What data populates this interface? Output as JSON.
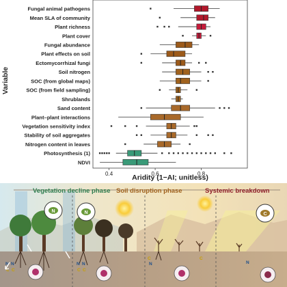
{
  "chart_data": {
    "type": "boxplot",
    "title": "",
    "xlabel": "Aridity (1−AI; unitless)",
    "ylabel": "Variable",
    "xlim": [
      0.33,
      1.0
    ],
    "xticks": [
      0.4,
      0.6,
      0.8
    ],
    "xtick_labels": [
      "0.4",
      "0.6",
      "0.8"
    ],
    "grid": false,
    "items": [
      {
        "label": "Fungal animal pathogens",
        "q1": 0.77,
        "median": 0.8,
        "q3": 0.83,
        "wlo": 0.68,
        "whi": 0.88,
        "outliers": [
          0.58
        ],
        "color": "#b2182b"
      },
      {
        "label": "Mean SLA of community",
        "q1": 0.78,
        "median": 0.81,
        "q3": 0.83,
        "wlo": 0.71,
        "whi": 0.86,
        "outliers": [
          0.62
        ],
        "color": "#b2182b"
      },
      {
        "label": "Plant richness",
        "q1": 0.78,
        "median": 0.8,
        "q3": 0.82,
        "wlo": 0.7,
        "whi": 0.84,
        "outliers": [
          0.61,
          0.64,
          0.66
        ],
        "color": "#c51b3a"
      },
      {
        "label": "Plant cover",
        "q1": 0.78,
        "median": 0.79,
        "q3": 0.8,
        "wlo": 0.76,
        "whi": 0.82,
        "outliers": [
          0.72,
          0.84
        ],
        "color": "#c51b3a"
      },
      {
        "label": "Fungal abundance",
        "q1": 0.69,
        "median": 0.73,
        "q3": 0.76,
        "wlo": 0.62,
        "whi": 0.79,
        "outliers": [],
        "color": "#9c5a1a"
      },
      {
        "label": "Plant effects on soil",
        "q1": 0.65,
        "median": 0.68,
        "q3": 0.73,
        "wlo": 0.58,
        "whi": 0.76,
        "outliers": [
          0.54
        ],
        "color": "#9c5a1a"
      },
      {
        "label": "Ectomycorrhizal fungi",
        "q1": 0.69,
        "median": 0.71,
        "q3": 0.73,
        "wlo": 0.63,
        "whi": 0.76,
        "outliers": [
          0.54,
          0.79,
          0.82
        ],
        "color": "#9c5a1a"
      },
      {
        "label": "Soil nitrogen",
        "q1": 0.69,
        "median": 0.72,
        "q3": 0.75,
        "wlo": 0.63,
        "whi": 0.8,
        "outliers": [
          0.83,
          0.85
        ],
        "color": "#a0621e"
      },
      {
        "label": "SOC (from global maps)",
        "q1": 0.69,
        "median": 0.71,
        "q3": 0.75,
        "wlo": 0.62,
        "whi": 0.8,
        "outliers": [
          0.83
        ],
        "color": "#a0621e"
      },
      {
        "label": "SOC (from field sampling)",
        "q1": 0.69,
        "median": 0.7,
        "q3": 0.71,
        "wlo": 0.66,
        "whi": 0.74,
        "outliers": [
          0.62,
          0.78
        ],
        "color": "#a0621e"
      },
      {
        "label": "Shrublands",
        "q1": 0.69,
        "median": 0.7,
        "q3": 0.71,
        "wlo": 0.67,
        "whi": 0.72,
        "outliers": [],
        "color": "#a0621e"
      },
      {
        "label": "Sand content",
        "q1": 0.67,
        "median": 0.71,
        "q3": 0.75,
        "wlo": 0.56,
        "whi": 0.86,
        "outliers": [
          0.54,
          0.88,
          0.9,
          0.92
        ],
        "color": "#a8692a"
      },
      {
        "label": "Plant–plant interactions",
        "q1": 0.58,
        "median": 0.64,
        "q3": 0.71,
        "wlo": 0.44,
        "whi": 0.81,
        "outliers": [],
        "color": "#a8692a"
      },
      {
        "label": "Vegetation sensitivity index",
        "q1": 0.65,
        "median": 0.67,
        "q3": 0.69,
        "wlo": 0.56,
        "whi": 0.75,
        "outliers": [
          0.41,
          0.47,
          0.52,
          0.77,
          0.78
        ],
        "color": "#a8692a"
      },
      {
        "label": "Stability of soil aggregates",
        "q1": 0.65,
        "median": 0.67,
        "q3": 0.69,
        "wlo": 0.58,
        "whi": 0.74,
        "outliers": [
          0.52,
          0.54,
          0.78,
          0.83,
          0.85
        ],
        "color": "#a8692a"
      },
      {
        "label": "Nitrogen content in leaves",
        "q1": 0.61,
        "median": 0.64,
        "q3": 0.67,
        "wlo": 0.55,
        "whi": 0.71,
        "outliers": [
          0.47,
          0.75
        ],
        "color": "#a8692a"
      },
      {
        "label": "Photosynthesis (1)",
        "q1": 0.48,
        "median": 0.51,
        "q3": 0.54,
        "wlo": 0.43,
        "whi": 0.61,
        "outliers": [
          0.36,
          0.37,
          0.38,
          0.39,
          0.4,
          0.63,
          0.66,
          0.68,
          0.7,
          0.72,
          0.74,
          0.76,
          0.78,
          0.8,
          0.82,
          0.84,
          0.86,
          0.9,
          0.93
        ],
        "color": "#3a9a78"
      },
      {
        "label": "NDVI",
        "q1": 0.46,
        "median": 0.52,
        "q3": 0.57,
        "wlo": 0.36,
        "whi": 0.69,
        "outliers": [],
        "color": "#3a9a78"
      }
    ]
  },
  "panel": {
    "phases": [
      {
        "label": "Vegetation decline phase",
        "color": "#2e7d4f"
      },
      {
        "label": "Soil disruption phase",
        "color": "#a0621e"
      },
      {
        "label": "Systemic breakdown",
        "color": "#8e1e2a"
      }
    ],
    "leaf_badges": [
      "N",
      "N",
      "C"
    ],
    "soil_letters": [
      [
        "N",
        "N",
        "C",
        "C"
      ],
      [
        "N",
        "N",
        "C",
        "C"
      ],
      [
        "C",
        "N"
      ],
      [
        "C"
      ],
      [
        "N"
      ]
    ]
  }
}
